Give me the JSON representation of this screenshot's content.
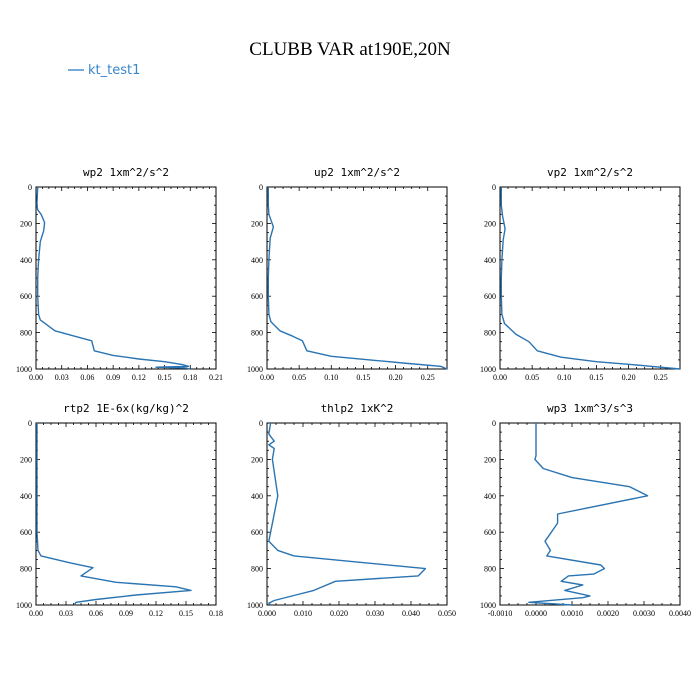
{
  "title": "CLUBB VAR at190E,20N",
  "legend": {
    "label": "kt_test1",
    "color": "#3a86c8"
  },
  "chart_data": [
    {
      "type": "line",
      "title": "wp2  1xm^2/s^2",
      "series": [
        {
          "name": "kt_test1",
          "points": [
            [
              0.002,
              0
            ],
            [
              0.001,
              100
            ],
            [
              0.002,
              125
            ],
            [
              0.006,
              150
            ],
            [
              0.01,
              195
            ],
            [
              0.009,
              240
            ],
            [
              0.005,
              300
            ],
            [
              0.003,
              400
            ],
            [
              0.002,
              500
            ],
            [
              0.002,
              600
            ],
            [
              0.003,
              700
            ],
            [
              0.005,
              730
            ],
            [
              0.022,
              790
            ],
            [
              0.045,
              820
            ],
            [
              0.065,
              845
            ],
            [
              0.068,
              900
            ],
            [
              0.09,
              925
            ],
            [
              0.12,
              945
            ],
            [
              0.15,
              960
            ],
            [
              0.17,
              975
            ],
            [
              0.178,
              985
            ],
            [
              0.14,
              990
            ],
            [
              0.175,
              995
            ],
            [
              0.18,
              1000
            ]
          ]
        }
      ],
      "xlim": [
        0,
        0.21
      ],
      "ylim": [
        1000,
        0
      ],
      "xticks": [
        "0.00",
        "0.03",
        "0.06",
        "0.09",
        "0.12",
        "0.15",
        "0.18",
        "0.21"
      ],
      "yticks": [
        "0",
        "200",
        "400",
        "600",
        "800",
        "1000"
      ]
    },
    {
      "type": "line",
      "title": "up2  1xm^2/s^2",
      "series": [
        {
          "name": "kt_test1",
          "points": [
            [
              0.002,
              0
            ],
            [
              0.002,
              100
            ],
            [
              0.003,
              150
            ],
            [
              0.01,
              220
            ],
            [
              0.005,
              280
            ],
            [
              0.003,
              400
            ],
            [
              0.002,
              500
            ],
            [
              0.002,
              600
            ],
            [
              0.003,
              700
            ],
            [
              0.006,
              740
            ],
            [
              0.02,
              790
            ],
            [
              0.04,
              820
            ],
            [
              0.055,
              845
            ],
            [
              0.062,
              900
            ],
            [
              0.1,
              930
            ],
            [
              0.16,
              950
            ],
            [
              0.22,
              970
            ],
            [
              0.27,
              985
            ],
            [
              0.28,
              1000
            ]
          ]
        }
      ],
      "xlim": [
        0,
        0.28
      ],
      "ylim": [
        1000,
        0
      ],
      "xticks": [
        "0.00",
        "0.05",
        "0.10",
        "0.15",
        "0.20",
        "0.25"
      ],
      "yticks": [
        "0",
        "200",
        "400",
        "600",
        "800",
        "1000"
      ]
    },
    {
      "type": "line",
      "title": "vp2  1xm^2/s^2",
      "series": [
        {
          "name": "kt_test1",
          "points": [
            [
              0.002,
              0
            ],
            [
              0.002,
              100
            ],
            [
              0.004,
              160
            ],
            [
              0.008,
              230
            ],
            [
              0.005,
              290
            ],
            [
              0.003,
              400
            ],
            [
              0.002,
              500
            ],
            [
              0.002,
              600
            ],
            [
              0.003,
              700
            ],
            [
              0.007,
              750
            ],
            [
              0.025,
              810
            ],
            [
              0.045,
              850
            ],
            [
              0.058,
              900
            ],
            [
              0.095,
              935
            ],
            [
              0.15,
              960
            ],
            [
              0.22,
              980
            ],
            [
              0.28,
              1000
            ]
          ]
        }
      ],
      "xlim": [
        0,
        0.28
      ],
      "ylim": [
        1000,
        0
      ],
      "xticks": [
        "0.00",
        "0.05",
        "0.10",
        "0.15",
        "0.20",
        "0.25"
      ],
      "yticks": [
        "0",
        "200",
        "400",
        "600",
        "800",
        "1000"
      ]
    },
    {
      "type": "line",
      "title": "rtp2  1E-6x(kg/kg)^2",
      "series": [
        {
          "name": "kt_test1",
          "points": [
            [
              0.001,
              0
            ],
            [
              0.001,
              200
            ],
            [
              0.001,
              400
            ],
            [
              0.001,
              600
            ],
            [
              0.002,
              700
            ],
            [
              0.005,
              730
            ],
            [
              0.035,
              770
            ],
            [
              0.057,
              795
            ],
            [
              0.045,
              840
            ],
            [
              0.08,
              875
            ],
            [
              0.14,
              900
            ],
            [
              0.155,
              920
            ],
            [
              0.1,
              945
            ],
            [
              0.06,
              970
            ],
            [
              0.04,
              985
            ],
            [
              0.038,
              1000
            ]
          ]
        }
      ],
      "xlim": [
        0,
        0.18
      ],
      "ylim": [
        1000,
        0
      ],
      "xticks": [
        "0.00",
        "0.03",
        "0.06",
        "0.09",
        "0.12",
        "0.15",
        "0.18"
      ],
      "yticks": [
        "0",
        "200",
        "400",
        "600",
        "800",
        "1000"
      ]
    },
    {
      "type": "line",
      "title": "thlp2  1xK^2",
      "series": [
        {
          "name": "kt_test1",
          "points": [
            [
              0.001,
              0
            ],
            [
              0.0005,
              60
            ],
            [
              0.002,
              100
            ],
            [
              0.0005,
              120
            ],
            [
              0.002,
              140
            ],
            [
              0.0015,
              200
            ],
            [
              0.003,
              400
            ],
            [
              0.002,
              500
            ],
            [
              0.001,
              600
            ],
            [
              0.0005,
              650
            ],
            [
              0.003,
              700
            ],
            [
              0.0075,
              730
            ],
            [
              0.044,
              800
            ],
            [
              0.042,
              840
            ],
            [
              0.019,
              870
            ],
            [
              0.013,
              920
            ],
            [
              0.008,
              945
            ],
            [
              0.002,
              975
            ],
            [
              0.0005,
              990
            ],
            [
              0.001,
              1000
            ]
          ]
        }
      ],
      "xlim": [
        0,
        0.05
      ],
      "ylim": [
        1000,
        0
      ],
      "xticks": [
        "0.000",
        "0.010",
        "0.020",
        "0.030",
        "0.040",
        "0.050"
      ],
      "yticks": [
        "0",
        "200",
        "400",
        "600",
        "800",
        "1000"
      ]
    },
    {
      "type": "line",
      "title": "wp3  1xm^3/s^3",
      "series": [
        {
          "name": "kt_test1",
          "points": [
            [
              0,
              0
            ],
            [
              0,
              100
            ],
            [
              0,
              180
            ],
            [
              -3e-05,
              200
            ],
            [
              0.0002,
              250
            ],
            [
              0.001,
              300
            ],
            [
              0.0026,
              350
            ],
            [
              0.0031,
              400
            ],
            [
              0.0006,
              500
            ],
            [
              0.0006,
              550
            ],
            [
              0.00025,
              650
            ],
            [
              0.0004,
              700
            ],
            [
              0.0003,
              730
            ],
            [
              0.0018,
              780
            ],
            [
              0.0019,
              800
            ],
            [
              0.0016,
              830
            ],
            [
              0.0009,
              840
            ],
            [
              0.0007,
              870
            ],
            [
              0.0013,
              890
            ],
            [
              0.0008,
              920
            ],
            [
              0.0015,
              950
            ],
            [
              0.0013,
              960
            ],
            [
              -0.0002,
              985
            ],
            [
              0.001,
              1000
            ]
          ]
        }
      ],
      "xlim": [
        -0.001,
        0.004
      ],
      "ylim": [
        1000,
        0
      ],
      "xticks": [
        "-0.0010",
        "0.0000",
        "0.0010",
        "0.0020",
        "0.0030",
        "0.0040"
      ],
      "yticks": [
        "0",
        "200",
        "400",
        "600",
        "800",
        "1000"
      ]
    }
  ]
}
